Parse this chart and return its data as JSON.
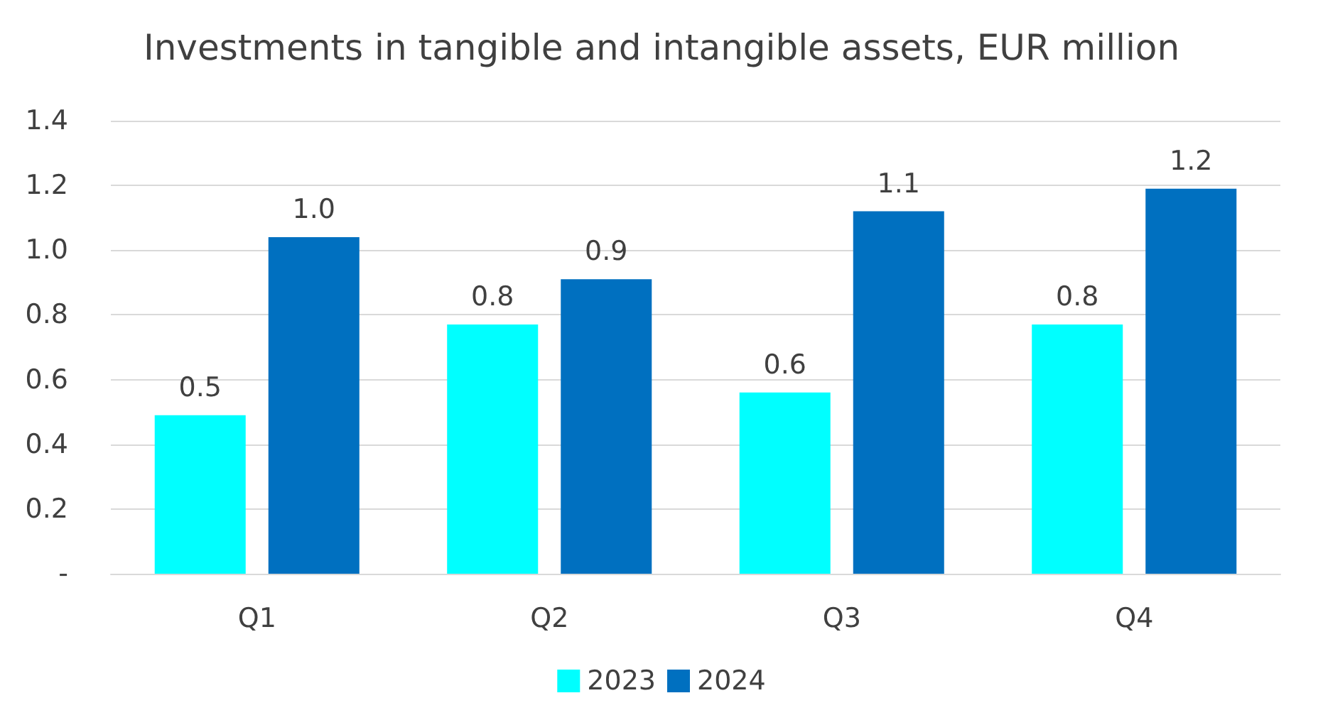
{
  "chart_data": {
    "type": "bar",
    "title": "Investments in tangible and intangible assets, EUR million",
    "categories": [
      "Q1",
      "Q2",
      "Q3",
      "Q4"
    ],
    "series": [
      {
        "name": "2023",
        "color": "#00ffff",
        "values": [
          0.49,
          0.77,
          0.56,
          0.77
        ],
        "value_labels": [
          "0.5",
          "0.8",
          "0.6",
          "0.8"
        ]
      },
      {
        "name": "2024",
        "color": "#0070c0",
        "values": [
          1.04,
          0.91,
          1.12,
          1.19
        ],
        "value_labels": [
          "1.0",
          "0.9",
          "1.1",
          "1.2"
        ]
      }
    ],
    "ylim": [
      0,
      1.4
    ],
    "yticks": [
      {
        "value": 0,
        "label": "-"
      },
      {
        "value": 0.2,
        "label": "0.2"
      },
      {
        "value": 0.4,
        "label": "0.4"
      },
      {
        "value": 0.6,
        "label": "0.6"
      },
      {
        "value": 0.8,
        "label": "0.8"
      },
      {
        "value": 1.0,
        "label": "1.0"
      },
      {
        "value": 1.2,
        "label": "1.2"
      },
      {
        "value": 1.4,
        "label": "1.4"
      }
    ],
    "grid": "y",
    "legend": "bottom"
  }
}
